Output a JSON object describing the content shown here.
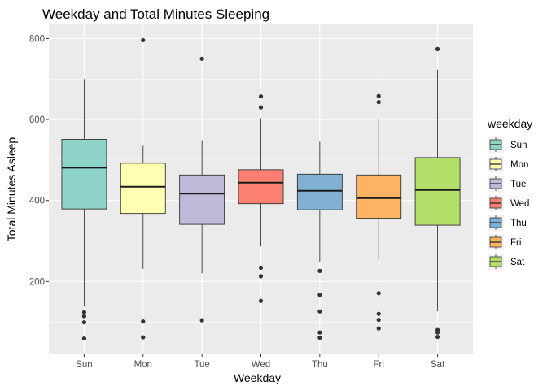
{
  "chart_data": {
    "type": "boxplot",
    "title": "Weekday and Total Minutes Sleeping",
    "xlabel": "Weekday",
    "ylabel": "Total Minutes Asleep",
    "ylim": [
      20,
      835
    ],
    "yticks": [
      200,
      400,
      600,
      800
    ],
    "grid": true,
    "legend": {
      "title": "weekday",
      "position": "right"
    },
    "categories": [
      "Sun",
      "Mon",
      "Tue",
      "Wed",
      "Thu",
      "Fri",
      "Sat"
    ],
    "series": [
      {
        "name": "Sun",
        "color": "#8DD3C7",
        "whisker_low": 138,
        "q1": 379,
        "median": 481,
        "q3": 551,
        "whisker_high": 700,
        "outliers": [
          124,
          114,
          99,
          59
        ]
      },
      {
        "name": "Mon",
        "color": "#FFFFB3",
        "whisker_low": 231,
        "q1": 368,
        "median": 434,
        "q3": 492,
        "whisker_high": 535,
        "outliers": [
          796,
          101,
          62
        ]
      },
      {
        "name": "Tue",
        "color": "#BEBADA",
        "whisker_low": 220,
        "q1": 341,
        "median": 417,
        "q3": 463,
        "whisker_high": 549,
        "outliers": [
          750,
          104
        ]
      },
      {
        "name": "Wed",
        "color": "#FB8072",
        "whisker_low": 287,
        "q1": 392,
        "median": 444,
        "q3": 476,
        "whisker_high": 603,
        "outliers": [
          657,
          630,
          234,
          213,
          152
        ]
      },
      {
        "name": "Thu",
        "color": "#80B1D3",
        "whisker_low": 247,
        "q1": 377,
        "median": 424,
        "q3": 465,
        "whisker_high": 545,
        "outliers": [
          226,
          167,
          126,
          74,
          61
        ]
      },
      {
        "name": "Fri",
        "color": "#FDB462",
        "whisker_low": 254,
        "q1": 356,
        "median": 406,
        "q3": 463,
        "whisker_high": 600,
        "outliers": [
          658,
          643,
          171,
          120,
          105,
          84
        ]
      },
      {
        "name": "Sat",
        "color": "#B3DE69",
        "whisker_low": 126,
        "q1": 339,
        "median": 426,
        "q3": 506,
        "whisker_high": 723,
        "outliers": [
          774,
          80,
          74,
          63
        ]
      }
    ]
  }
}
